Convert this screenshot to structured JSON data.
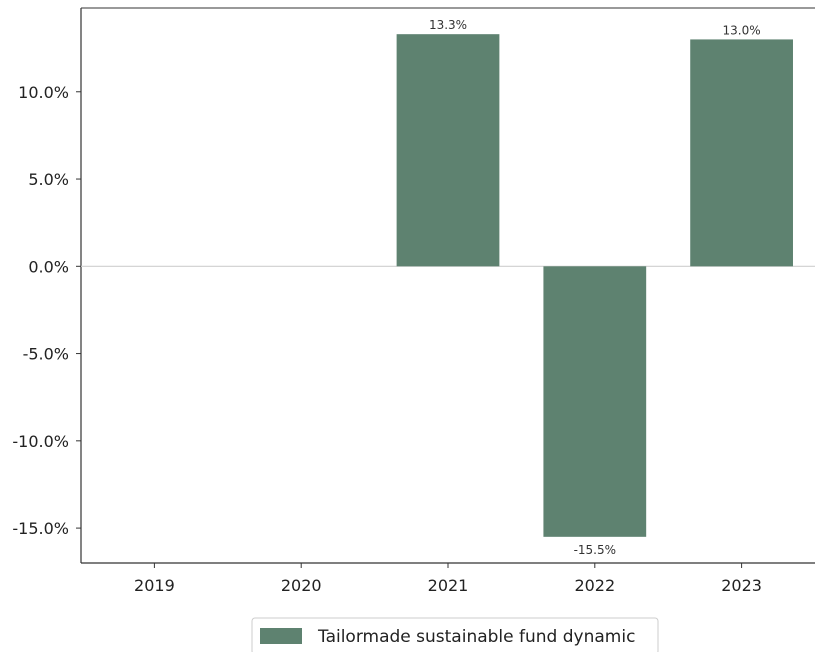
{
  "chart_data": {
    "type": "bar",
    "categories": [
      "2019",
      "2020",
      "2021",
      "2022",
      "2023"
    ],
    "series": [
      {
        "name": "Tailormade sustainable fund dynamic",
        "values": [
          null,
          null,
          13.3,
          -15.5,
          13.0
        ],
        "color": "#5e8270"
      }
    ],
    "data_labels": [
      "",
      "",
      "13.3%",
      "-15.5%",
      "13.0%"
    ],
    "y_ticks": [
      10,
      5,
      0,
      -5,
      -10,
      -15
    ],
    "y_tick_labels": [
      "10.0%",
      "5.0%",
      "0.0%",
      "-5.0%",
      "-10.0%",
      "-15.0%"
    ],
    "ylim": [
      -17,
      14.8
    ],
    "title": "",
    "xlabel": "",
    "ylabel": "",
    "grid": false,
    "zero_line": true,
    "legend_position": "bottom-center"
  }
}
